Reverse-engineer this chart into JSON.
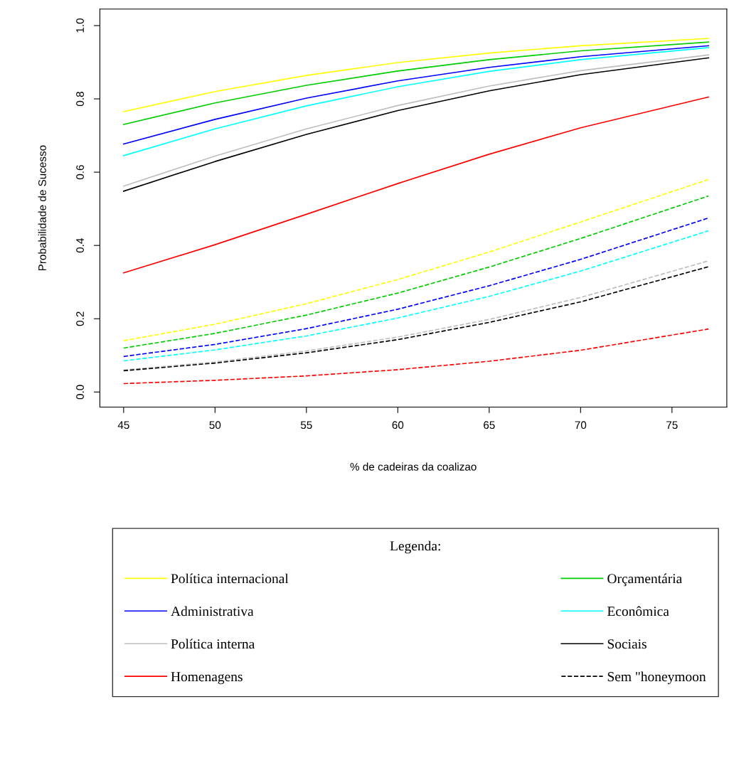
{
  "chart_data": {
    "type": "line",
    "xlabel": "% de cadeiras da coalizao",
    "ylabel": "Probabilidade de Sucesso",
    "x": [
      45,
      50,
      55,
      60,
      65,
      70,
      77
    ],
    "xlim": [
      43.7,
      78.0
    ],
    "ylim": [
      -0.041,
      1.045
    ],
    "xticks": [
      45,
      50,
      55,
      60,
      65,
      70,
      75
    ],
    "yticks": [
      {
        "value": 0,
        "label": "0.0"
      },
      {
        "value": 0.2,
        "label": "0.2"
      },
      {
        "value": 0.4,
        "label": "0.4"
      },
      {
        "value": 0.6,
        "label": "0.6"
      },
      {
        "value": 0.8,
        "label": "0.8"
      },
      {
        "value": 1.0,
        "label": "1.0"
      }
    ],
    "grid": false,
    "legend": "bottom",
    "legend_title": "Legenda:",
    "series": [
      {
        "name": "Política internacional",
        "color": "#ffff00",
        "line_style": "solid",
        "values": [
          0.765,
          0.82,
          0.864,
          0.899,
          0.925,
          0.945,
          0.965
        ]
      },
      {
        "name": "Orçamentária",
        "color": "#00cd00",
        "line_style": "solid",
        "values": [
          0.73,
          0.789,
          0.837,
          0.876,
          0.907,
          0.931,
          0.955
        ]
      },
      {
        "name": "Administrativa",
        "color": "#0000ff",
        "line_style": "solid",
        "values": [
          0.677,
          0.744,
          0.802,
          0.849,
          0.886,
          0.915,
          0.945
        ]
      },
      {
        "name": "Econômica",
        "color": "#00ffff",
        "line_style": "solid",
        "values": [
          0.645,
          0.718,
          0.781,
          0.833,
          0.875,
          0.907,
          0.94
        ]
      },
      {
        "name": "Política interna",
        "color": "#bebebe",
        "line_style": "solid",
        "values": [
          0.562,
          0.644,
          0.718,
          0.782,
          0.835,
          0.877,
          0.92
        ]
      },
      {
        "name": "Sociais",
        "color": "#000000",
        "line_style": "solid",
        "values": [
          0.548,
          0.629,
          0.703,
          0.768,
          0.822,
          0.866,
          0.912
        ]
      },
      {
        "name": "Homenagens",
        "color": "#ff0000",
        "line_style": "solid",
        "values": [
          0.325,
          0.402,
          0.485,
          0.569,
          0.649,
          0.721,
          0.805
        ]
      },
      {
        "color": "#ffff00",
        "line_style": "dashed",
        "values": [
          0.14,
          0.185,
          0.241,
          0.307,
          0.382,
          0.464,
          0.58
        ]
      },
      {
        "color": "#00cd00",
        "line_style": "dashed",
        "values": [
          0.12,
          0.16,
          0.21,
          0.27,
          0.341,
          0.419,
          0.535
        ]
      },
      {
        "color": "#0000ff",
        "line_style": "dashed",
        "values": [
          0.097,
          0.13,
          0.173,
          0.226,
          0.29,
          0.362,
          0.475
        ]
      },
      {
        "color": "#00ffff",
        "line_style": "dashed",
        "values": [
          0.085,
          0.115,
          0.153,
          0.202,
          0.261,
          0.33,
          0.44
        ]
      },
      {
        "color": "#bebebe",
        "line_style": "dashed",
        "values": [
          0.06,
          0.082,
          0.112,
          0.15,
          0.198,
          0.258,
          0.358
        ]
      },
      {
        "name": "Sem \"honeymoon",
        "color": "#000000",
        "line_style": "dashed",
        "values": [
          0.058,
          0.079,
          0.107,
          0.143,
          0.19,
          0.246,
          0.342
        ]
      },
      {
        "color": "#ff0000",
        "line_style": "dashed",
        "values": [
          0.023,
          0.032,
          0.044,
          0.061,
          0.084,
          0.114,
          0.172
        ]
      }
    ]
  }
}
